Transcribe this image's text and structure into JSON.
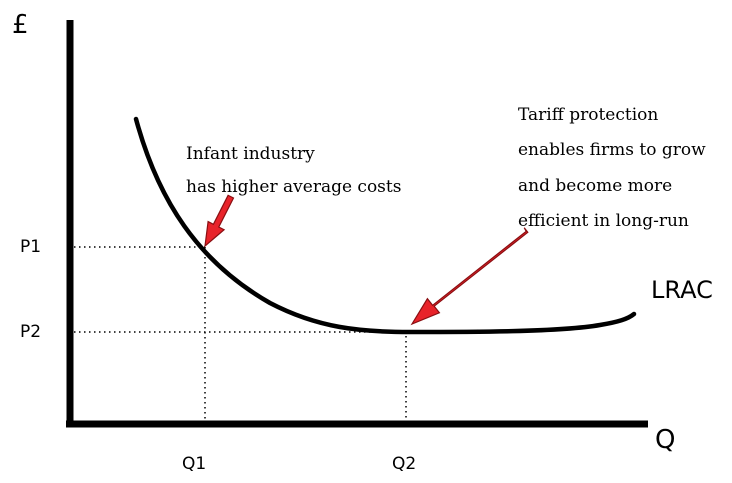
{
  "axes": {
    "y_label": "£",
    "x_label": "Q"
  },
  "price_levels": {
    "p1": "P1",
    "p2": "P2"
  },
  "quantity_levels": {
    "q1": "Q1",
    "q2": "Q2"
  },
  "curve": {
    "label": "LRAC"
  },
  "annotations": {
    "infant": {
      "line1": "Infant industry",
      "line2": "has higher average costs"
    },
    "tariff": {
      "line1": "Tariff protection",
      "line2": "enables firms to grow",
      "line3": "and become more",
      "line4": "efficient in long-run"
    }
  },
  "colors": {
    "axis": "#000000",
    "curve": "#000000",
    "arrow": "#e8232a",
    "arrow_outline": "#8a0f12",
    "guides": "#000000"
  }
}
